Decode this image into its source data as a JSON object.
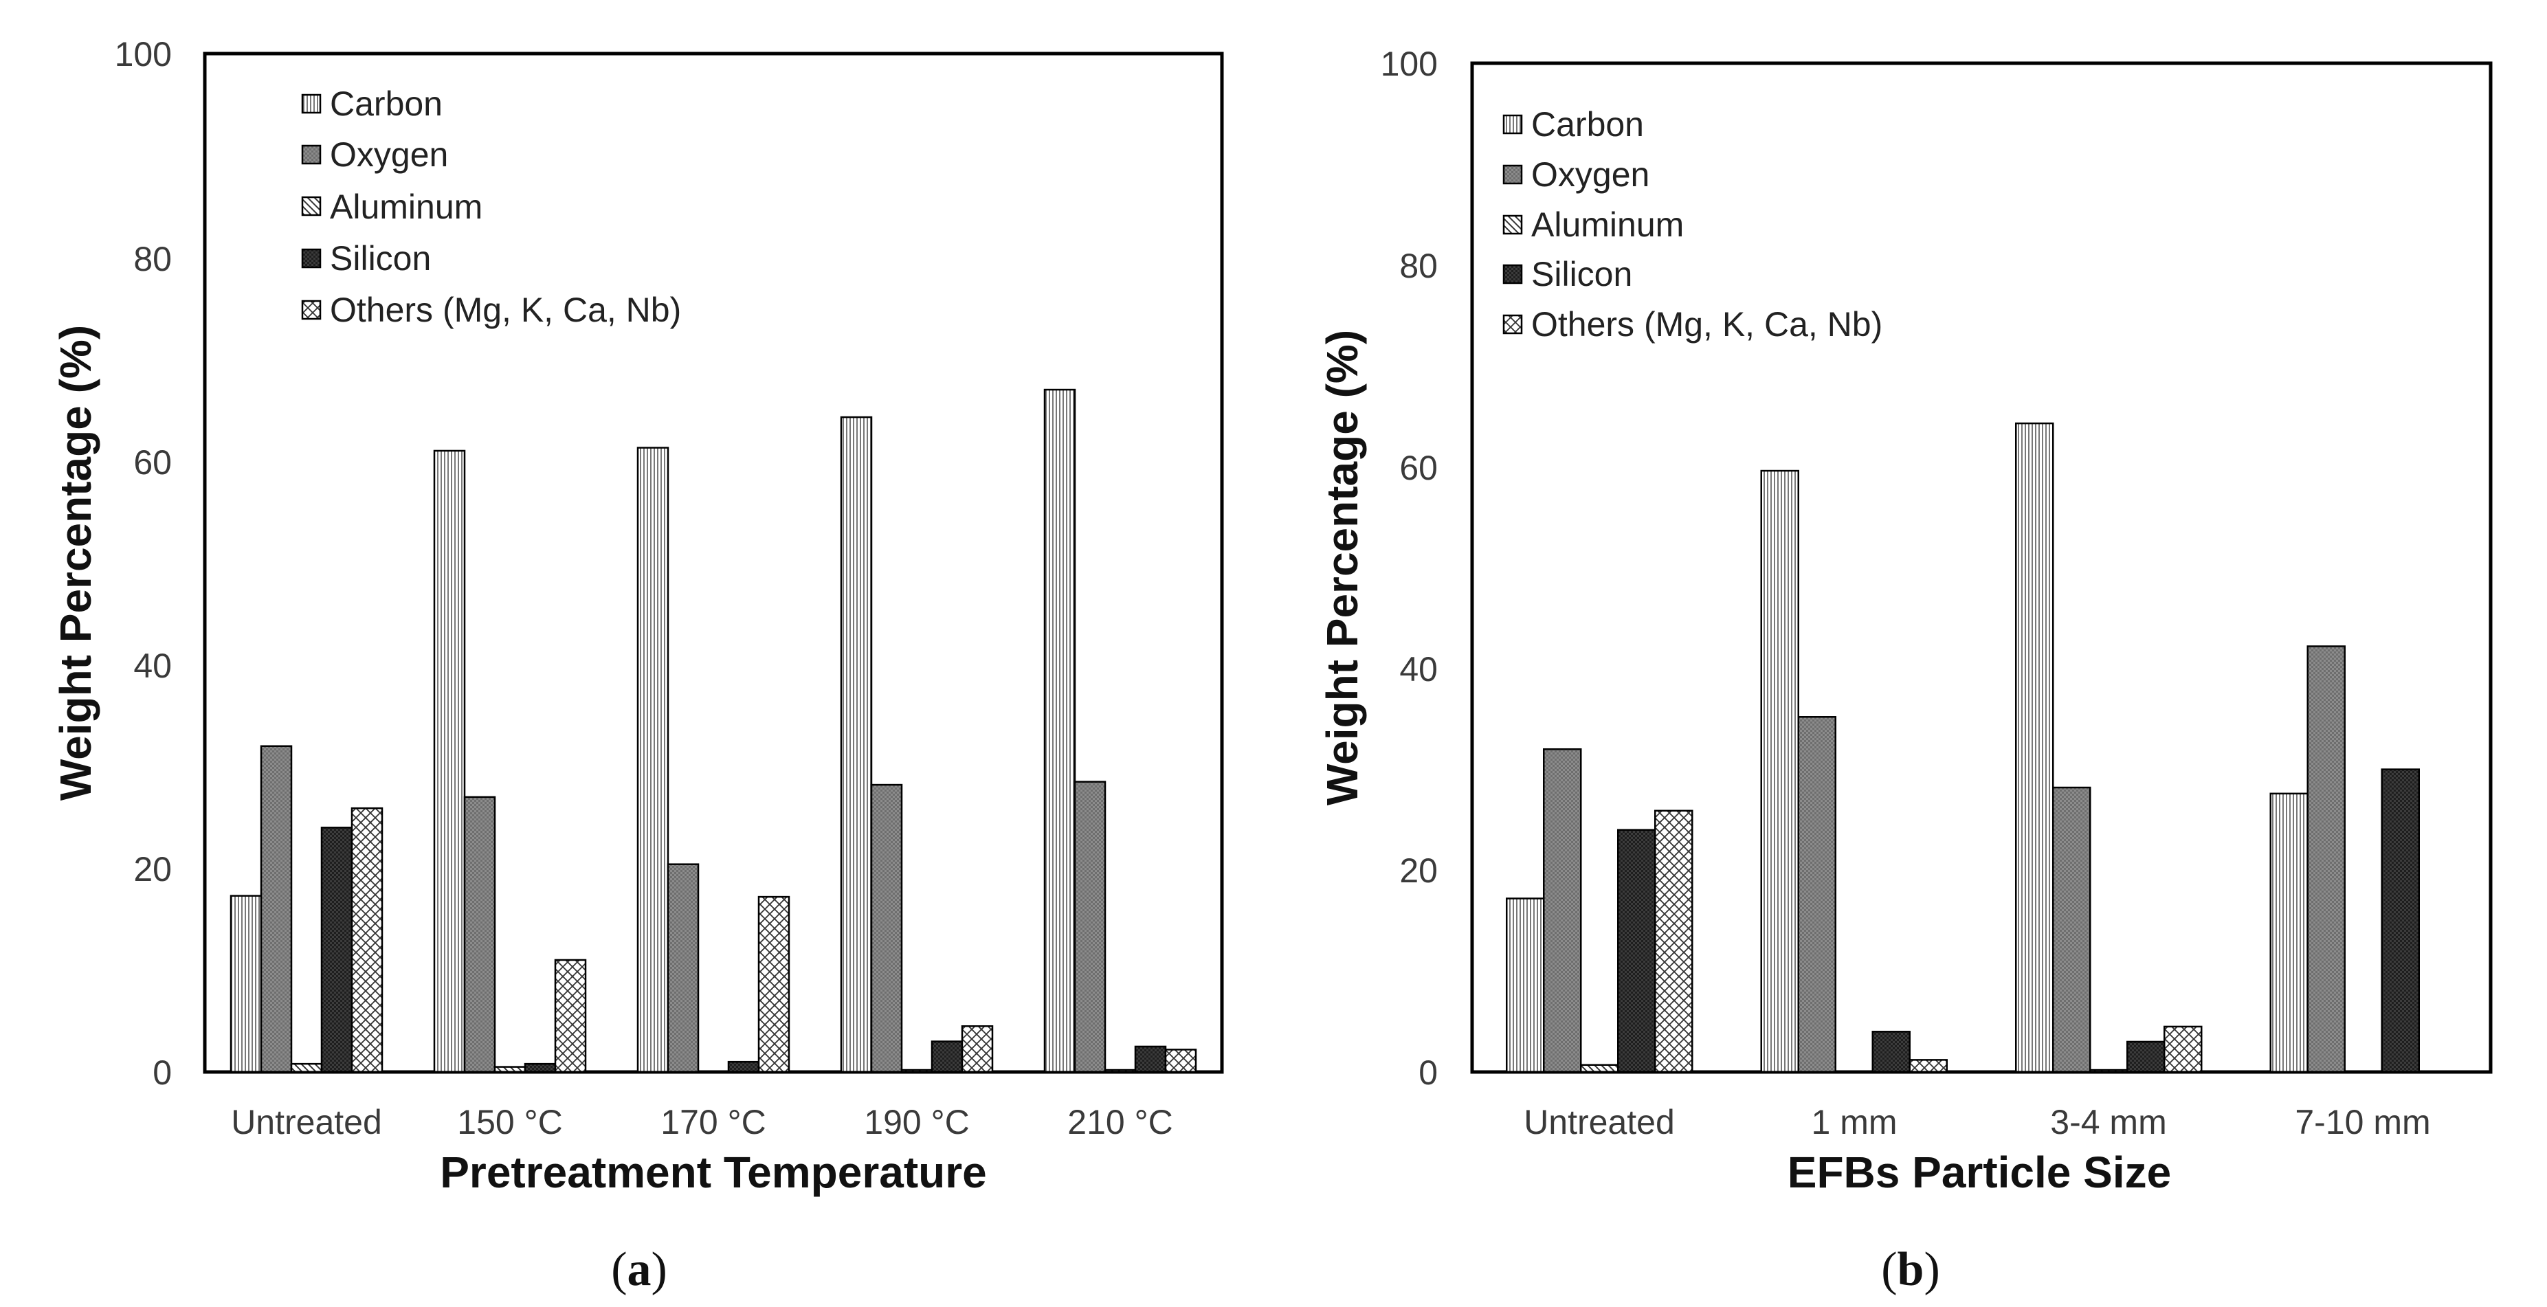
{
  "series_names": [
    "Carbon",
    "Oxygen",
    "Aluminum",
    "Silicon",
    "Others (Mg, K, Ca, Nb)"
  ],
  "chart_data": [
    {
      "type": "bar",
      "panel": "a",
      "caption": "a",
      "xlabel": "Pretreatment Temperature",
      "ylabel": "Weight Percentage (%)",
      "ylim": [
        0,
        100
      ],
      "yticks": [
        "0",
        "20",
        "40",
        "60",
        "80",
        "100"
      ],
      "categories": [
        "Untreated",
        "150 °C",
        "170 °C",
        "190 °C",
        "210 °C"
      ],
      "series": [
        {
          "name": "Carbon",
          "values": [
            17.3,
            61.0,
            61.3,
            64.3,
            67.0
          ]
        },
        {
          "name": "Oxygen",
          "values": [
            32.0,
            27.0,
            20.4,
            28.2,
            28.5
          ]
        },
        {
          "name": "Aluminum",
          "values": [
            0.8,
            0.5,
            0.0,
            0.2,
            0.2
          ]
        },
        {
          "name": "Silicon",
          "values": [
            24.0,
            0.8,
            1.0,
            3.0,
            2.5
          ]
        },
        {
          "name": "Others (Mg, K, Ca, Nb)",
          "values": [
            25.9,
            11.0,
            17.2,
            4.5,
            2.2
          ]
        }
      ]
    },
    {
      "type": "bar",
      "panel": "b",
      "caption": "b",
      "xlabel": "EFBs Particle Size",
      "ylabel": "Weight Percentage (%)",
      "ylim": [
        0,
        100
      ],
      "yticks": [
        "0",
        "20",
        "40",
        "60",
        "80",
        "100"
      ],
      "categories": [
        "Untreated",
        "1 mm",
        "3-4 mm",
        "7-10 mm"
      ],
      "series": [
        {
          "name": "Carbon",
          "values": [
            17.2,
            59.6,
            64.3,
            27.6
          ]
        },
        {
          "name": "Oxygen",
          "values": [
            32.0,
            35.2,
            28.2,
            42.2
          ]
        },
        {
          "name": "Aluminum",
          "values": [
            0.7,
            0.0,
            0.2,
            0.0
          ]
        },
        {
          "name": "Silicon",
          "values": [
            24.0,
            4.0,
            3.0,
            30.0
          ]
        },
        {
          "name": "Others (Mg, K, Ca, Nb)",
          "values": [
            25.9,
            1.2,
            4.5,
            0.0
          ]
        }
      ]
    }
  ]
}
